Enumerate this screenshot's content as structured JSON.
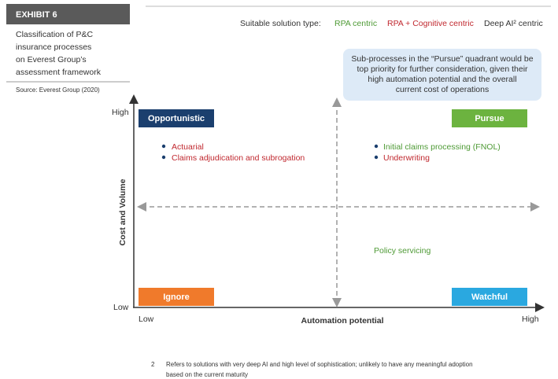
{
  "exhibit": {
    "label": "EXHIBIT 6",
    "description": [
      "Classification of P&C",
      "insurance processes",
      "on Everest Group’s",
      "assessment framework"
    ],
    "source": "Source: Everest Group (2020)"
  },
  "legend": {
    "title": "Suitable solution type:",
    "items": [
      "RPA centric",
      "RPA + Cognitive centric",
      "Deep AI² centric"
    ]
  },
  "callout": [
    "Sub-processes in the “Pursue” quadrant would be",
    "top priority for further consideration, given their",
    "high automation potential and the overall",
    "current cost of operations"
  ],
  "axes": {
    "y_label": "Cost and Volume",
    "y_high": "High",
    "y_low": "Low",
    "x_label": "Automation potential",
    "x_low": "Low",
    "x_high": "High"
  },
  "quadrants": {
    "opportunistic": {
      "label": "Opportunistic",
      "items": [
        "Actuarial",
        "Claims adjudication and subrogation"
      ]
    },
    "pursue": {
      "label": "Pursue",
      "items": [
        "Initial claims processing (FNOL)",
        "Underwriting"
      ]
    },
    "ignore": {
      "label": "Ignore"
    },
    "watchful": {
      "label": "Watchful",
      "items": [
        "Policy servicing"
      ]
    }
  },
  "footnote": {
    "number": "2",
    "lines": [
      "Refers to solutions with very deep AI and high level of sophistication; unlikely to have any meaningful adoption",
      "based on the current maturity"
    ]
  }
}
